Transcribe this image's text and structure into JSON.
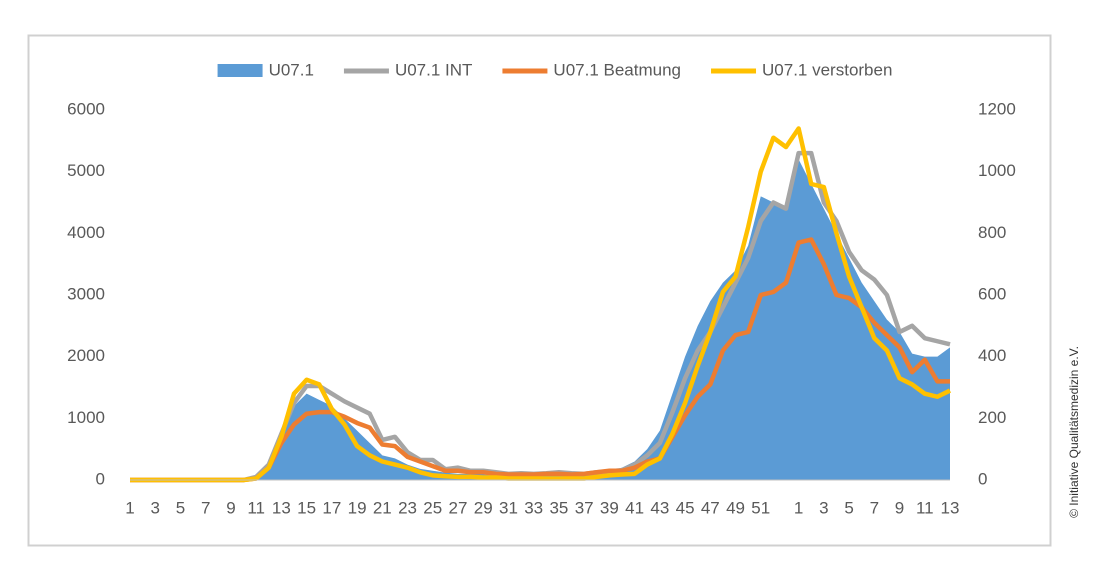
{
  "chart_data": {
    "type": "area-line",
    "categories": [
      "1",
      null,
      "3",
      null,
      "5",
      null,
      "7",
      null,
      "9",
      null,
      "11",
      null,
      "13",
      null,
      "15",
      null,
      "17",
      null,
      "19",
      null,
      "21",
      null,
      "23",
      null,
      "25",
      null,
      "27",
      null,
      "29",
      null,
      "31",
      null,
      "33",
      null,
      "35",
      null,
      "37",
      null,
      "39",
      null,
      "41",
      null,
      "43",
      null,
      "45",
      null,
      "47",
      null,
      "49",
      null,
      "51",
      null,
      null,
      "1",
      null,
      "3",
      null,
      "5",
      null,
      "7",
      null,
      "9",
      null,
      "11",
      null,
      "13"
    ],
    "series": [
      {
        "name": "U07.1",
        "color": "#5b9bd5",
        "kind": "area",
        "axis": "y",
        "values": [
          0,
          0,
          0,
          0,
          0,
          0,
          0,
          0,
          0,
          0,
          30,
          300,
          800,
          1200,
          1400,
          1300,
          1200,
          1000,
          800,
          600,
          400,
          350,
          250,
          180,
          150,
          120,
          100,
          100,
          90,
          80,
          80,
          80,
          90,
          100,
          110,
          100,
          100,
          120,
          140,
          200,
          300,
          500,
          800,
          1400,
          2000,
          2500,
          2900,
          3200,
          3400,
          3800,
          4600,
          4500,
          4400,
          5200,
          4800,
          4400,
          4000,
          3600,
          3200,
          2900,
          2600,
          2400,
          2050,
          2000,
          2000,
          2150
        ]
      },
      {
        "name": "U07.1 INT",
        "color": "#a5a5a5",
        "kind": "line",
        "axis": "y2",
        "values": [
          0,
          0,
          0,
          0,
          0,
          0,
          0,
          0,
          0,
          0,
          10,
          50,
          150,
          250,
          305,
          305,
          280,
          255,
          235,
          215,
          130,
          140,
          90,
          65,
          65,
          35,
          40,
          30,
          30,
          25,
          20,
          22,
          20,
          22,
          25,
          22,
          20,
          25,
          28,
          32,
          50,
          80,
          120,
          220,
          330,
          420,
          480,
          560,
          640,
          720,
          840,
          900,
          880,
          1060,
          1060,
          900,
          840,
          740,
          680,
          650,
          600,
          480,
          500,
          460,
          450,
          440
        ]
      },
      {
        "name": "U07.1 Beatmung",
        "color": "#ed7d31",
        "kind": "line",
        "axis": "y2",
        "values": [
          0,
          0,
          0,
          0,
          0,
          0,
          0,
          0,
          0,
          0,
          5,
          40,
          120,
          180,
          215,
          220,
          220,
          205,
          185,
          170,
          115,
          110,
          75,
          60,
          45,
          30,
          30,
          25,
          25,
          20,
          18,
          18,
          18,
          20,
          20,
          18,
          20,
          25,
          30,
          30,
          40,
          60,
          70,
          140,
          210,
          270,
          310,
          420,
          470,
          480,
          600,
          610,
          640,
          770,
          780,
          700,
          600,
          590,
          560,
          510,
          470,
          430,
          350,
          390,
          320,
          320
        ]
      },
      {
        "name": "U07.1 verstorben",
        "color": "#ffc000",
        "kind": "line",
        "axis": "y2",
        "values": [
          0,
          0,
          0,
          0,
          0,
          0,
          0,
          0,
          0,
          0,
          5,
          40,
          140,
          280,
          325,
          310,
          230,
          180,
          110,
          80,
          60,
          50,
          40,
          25,
          15,
          12,
          10,
          10,
          8,
          8,
          5,
          5,
          5,
          5,
          5,
          5,
          5,
          10,
          15,
          18,
          20,
          50,
          70,
          150,
          250,
          370,
          480,
          610,
          660,
          820,
          1000,
          1110,
          1080,
          1140,
          960,
          950,
          800,
          660,
          560,
          460,
          420,
          330,
          310,
          280,
          270,
          290
        ]
      }
    ],
    "ylim": [
      0,
      6000
    ],
    "yticks": [
      0,
      1000,
      2000,
      3000,
      4000,
      5000,
      6000
    ],
    "y2lim": [
      0,
      1200
    ],
    "y2ticks": [
      0,
      200,
      400,
      600,
      800,
      1000,
      1200
    ],
    "legend": "top",
    "credit": "© Initiative Qualitätsmedizin e.V."
  }
}
